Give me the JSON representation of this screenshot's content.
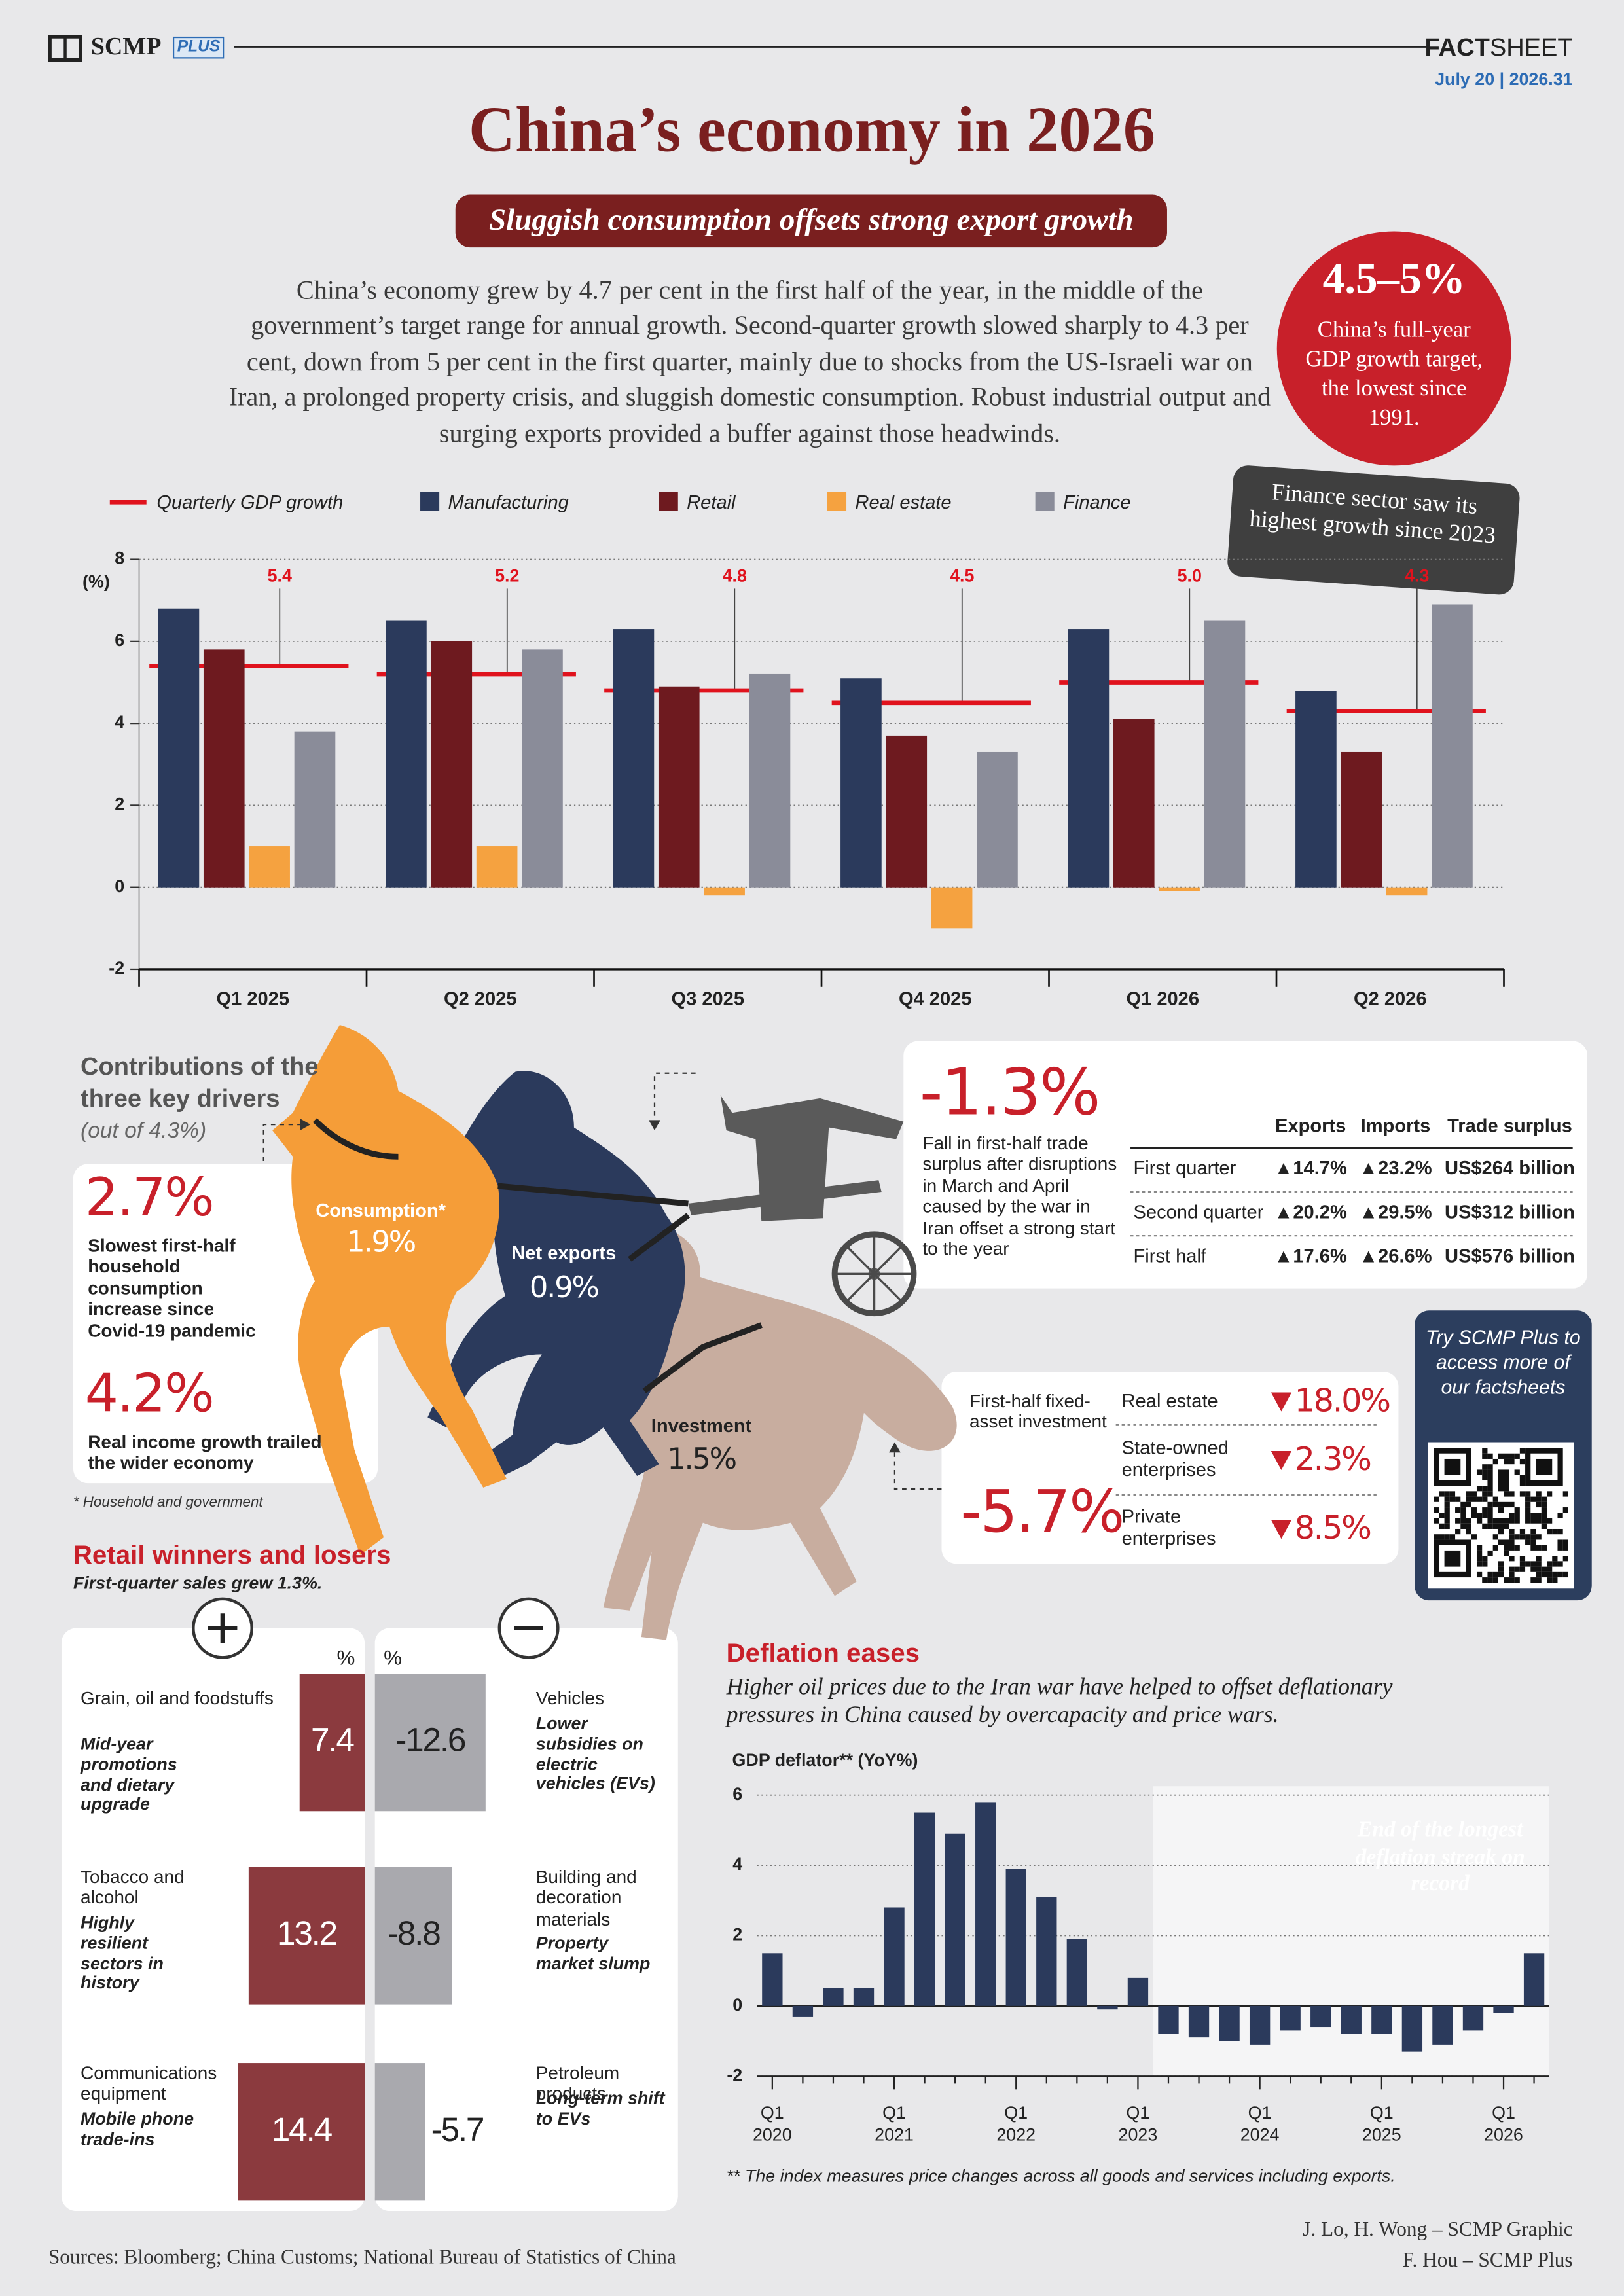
{
  "header": {
    "brand": "SCMP",
    "brand_tag": "PLUS",
    "section_bold": "FACT",
    "section_light": "SHEET",
    "date": "July 20 | 2026.31"
  },
  "title": "China’s economy in 2026",
  "subtitle": "Sluggish consumption offsets strong export growth",
  "intro": "China’s economy grew by 4.7 per cent in the first half of the year, in the middle of the government’s target range for annual growth. Second-quarter growth slowed sharply to 4.3 per cent, down from 5 per cent in the first quarter, mainly due to shocks from the US-Israeli war on Iran, a prolonged property crisis, and sluggish domestic consumption. Robust industrial output and surging exports provided a buffer against those headwinds.",
  "target": {
    "value": "4.5–5%",
    "text": "China’s full-year GDP growth target, the lowest since 1991."
  },
  "chart_data": [
    {
      "type": "bar",
      "categories": [
        "Q1 2025",
        "Q2 2025",
        "Q3 2025",
        "Q4 2025",
        "Q1 2026",
        "Q2 2026"
      ],
      "series": [
        {
          "name": "Quarterly GDP growth",
          "type": "line",
          "color": "#e0121d",
          "values": [
            5.4,
            5.2,
            4.8,
            4.5,
            5.0,
            4.3
          ],
          "value_labels": [
            "5.4",
            "5.2",
            "4.8",
            "4.5",
            "5.0",
            "4.3"
          ]
        },
        {
          "name": "Manufacturing",
          "color": "#2b3a5c",
          "values": [
            6.8,
            6.5,
            6.3,
            5.1,
            6.3,
            4.8
          ]
        },
        {
          "name": "Retail",
          "color": "#6e1a1f",
          "values": [
            5.8,
            6.0,
            4.9,
            3.7,
            4.1,
            3.3
          ]
        },
        {
          "name": "Real estate",
          "color": "#f5a240",
          "values": [
            1.0,
            1.0,
            -0.2,
            -1.0,
            -0.1,
            -0.2
          ]
        },
        {
          "name": "Finance",
          "color": "#8a8c99",
          "values": [
            3.8,
            5.8,
            5.2,
            3.3,
            6.5,
            6.9
          ]
        }
      ],
      "ylim": [
        -2,
        8
      ],
      "yticks": [
        -2,
        0,
        2,
        4,
        6,
        8
      ],
      "y_label": "(%)",
      "grid": true,
      "annotation": "Finance sector saw its highest growth since 2023"
    },
    {
      "type": "barh",
      "title": "Retail winners and losers",
      "subtitle": "First-quarter sales grew 1.3%.",
      "unit": "%",
      "categories": [
        "Grain, oil and foodstuffs",
        "Tobacco and alcohol",
        "Communications equipment",
        "Vehicles",
        "Building and decoration materials",
        "Petroleum products"
      ],
      "notes": [
        "Mid-year promotions and dietary upgrade",
        "Highly resilient sectors in history",
        "Mobile phone trade-ins",
        "Lower subsidies on electric vehicles (EVs)",
        "Property market slump",
        "Long-term shift to EVs"
      ],
      "values": [
        7.4,
        13.2,
        14.4,
        -12.6,
        -8.8,
        -5.7
      ],
      "colors": {
        "positive": "#8b3a3e",
        "negative": "#a9a9ae"
      }
    },
    {
      "type": "bar",
      "title": "Deflation eases",
      "subtitle": "Higher oil prices due to the Iran war have helped to offset deflationary pressures in China caused by overcapacity and price wars.",
      "y_label": "GDP deflator** (YoY%)",
      "categories": [
        "Q1 2020",
        null,
        null,
        null,
        "Q1 2021",
        null,
        null,
        null,
        "Q1 2022",
        null,
        null,
        null,
        "Q1 2023",
        null,
        null,
        null,
        "Q1 2024",
        null,
        null,
        null,
        "Q1 2025",
        null,
        null,
        null,
        "Q1 2026",
        null
      ],
      "values": [
        1.5,
        -0.3,
        0.5,
        0.5,
        2.8,
        5.5,
        4.9,
        5.8,
        3.9,
        3.1,
        1.9,
        -0.1,
        0.8,
        -0.8,
        -0.9,
        -1.0,
        -1.1,
        -0.7,
        -0.6,
        -0.8,
        -0.8,
        -1.3,
        -1.1,
        -0.7,
        -0.2,
        1.5
      ],
      "color": "#2b3a5c",
      "ylim": [
        -2,
        6
      ],
      "yticks": [
        -2,
        0,
        2,
        4,
        6
      ],
      "grid": true,
      "annotation": "End of the longest deflation streak on record",
      "footnote": "** The index measures price changes across all goods and services including exports."
    }
  ],
  "drivers": {
    "title": "Contributions of the three key drivers",
    "subtitle": "(out of 4.3%)",
    "items": [
      {
        "name": "Consumption*",
        "value": "1.9%"
      },
      {
        "name": "Net exports",
        "value": "0.9%"
      },
      {
        "name": "Investment",
        "value": "1.5%"
      }
    ],
    "stats": [
      {
        "value": "2.7%",
        "text": "Slowest first-half household consumption increase since Covid-19 pandemic"
      },
      {
        "value": "4.2%",
        "text": "Real income growth trailed the wider economy"
      }
    ],
    "footnote": "* Household and government"
  },
  "trade": {
    "value": "-1.3%",
    "text": "Fall in first-half trade surplus after disruptions in March and April caused by the war in Iran offset a strong start to the year",
    "header": [
      "Exports",
      "Imports",
      "Trade surplus"
    ],
    "rows": [
      [
        "First quarter",
        "▲14.7%",
        "▲23.2%",
        "US$264 billion"
      ],
      [
        "Second quarter",
        "▲20.2%",
        "▲29.5%",
        "US$312 billion"
      ],
      [
        "First half",
        "▲17.6%",
        "▲26.6%",
        "US$576 billion"
      ]
    ]
  },
  "investment": {
    "label": "First-half fixed-asset investment",
    "value": "-5.7%",
    "rows": [
      [
        "Real estate",
        "18.0%"
      ],
      [
        "State-owned enterprises",
        "2.3%"
      ],
      [
        "Private enterprises",
        "8.5%"
      ]
    ]
  },
  "promo": "Try SCMP Plus to access more of our factsheets",
  "footer": {
    "sources": "Sources: Bloomberg; China Customs; National Bureau of Statistics of China",
    "credits": [
      "J. Lo, H. Wong – SCMP Graphic",
      "F. Hou – SCMP Plus"
    ]
  }
}
